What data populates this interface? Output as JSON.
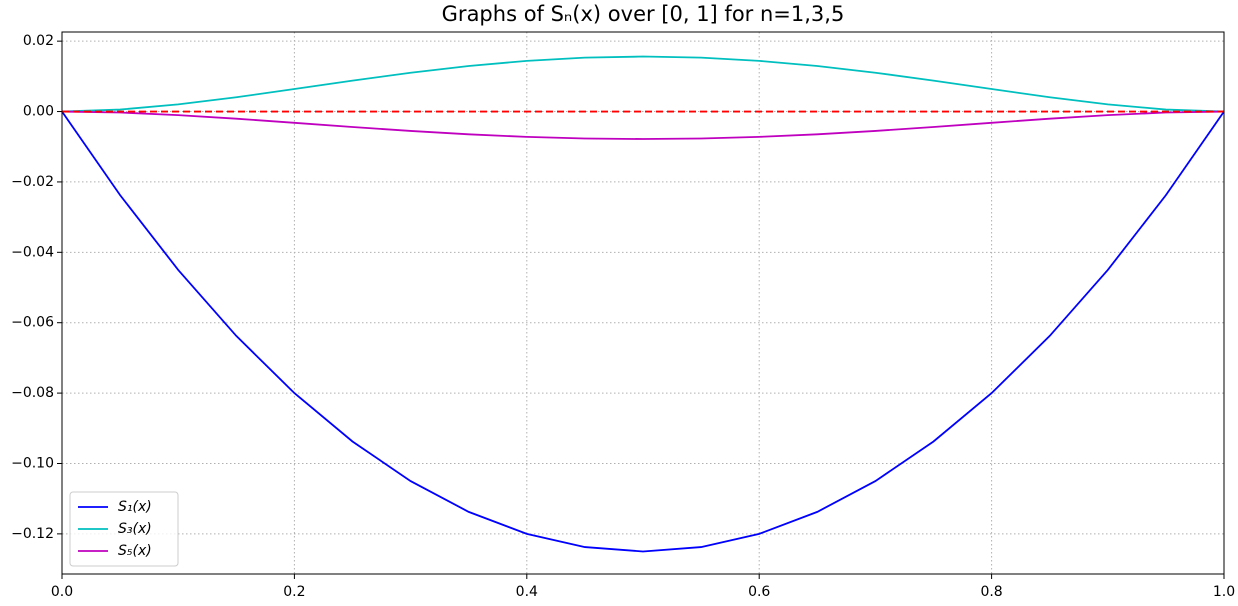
{
  "chart_data": {
    "type": "line",
    "title": "Graphs of Sₙ(x) over [0, 1] for n=1,3,5",
    "x": [
      0,
      0.05,
      0.1,
      0.15,
      0.2,
      0.25,
      0.3,
      0.35,
      0.4,
      0.45,
      0.5,
      0.55,
      0.6,
      0.65,
      0.7,
      0.75,
      0.8,
      0.85,
      0.9,
      0.95,
      1
    ],
    "series": [
      {
        "name": "S₁(x)",
        "color": "#0000ff",
        "values": [
          0,
          -0.02375,
          -0.045,
          -0.06375,
          -0.08,
          -0.09375,
          -0.105,
          -0.11375,
          -0.12,
          -0.12375,
          -0.125,
          -0.12375,
          -0.12,
          -0.11375,
          -0.105,
          -0.09375,
          -0.08,
          -0.06375,
          -0.045,
          -0.02375,
          0
        ]
      },
      {
        "name": "S₃(x)",
        "color": "#00bfbf",
        "values": [
          0,
          0.00056,
          0.00203,
          0.00406,
          0.0064,
          0.00879,
          0.01103,
          0.01294,
          0.0144,
          0.01531,
          0.01563,
          0.01531,
          0.0144,
          0.01294,
          0.01103,
          0.00879,
          0.0064,
          0.00406,
          0.00203,
          0.00056,
          0
        ]
      },
      {
        "name": "S₅(x)",
        "color": "#bf00bf",
        "values": [
          0,
          -0.00028,
          -0.00101,
          -0.00203,
          -0.0032,
          -0.0044,
          -0.00551,
          -0.00647,
          -0.0072,
          -0.00766,
          -0.00781,
          -0.00766,
          -0.0072,
          -0.00647,
          -0.00551,
          -0.0044,
          -0.0032,
          -0.00203,
          -0.00101,
          -0.00028,
          0
        ]
      }
    ],
    "hline": {
      "y": 0,
      "color": "#ff0000",
      "style": "dashed"
    },
    "xlim": [
      0,
      1
    ],
    "ylim": [
      -0.1314,
      0.0226
    ],
    "xticks": [
      {
        "value": 0,
        "label": "0.0"
      },
      {
        "value": 0.2,
        "label": "0.2"
      },
      {
        "value": 0.4,
        "label": "0.4"
      },
      {
        "value": 0.6,
        "label": "0.6"
      },
      {
        "value": 0.8,
        "label": "0.8"
      },
      {
        "value": 1,
        "label": "1.0"
      }
    ],
    "yticks": [
      {
        "value": -0.12,
        "label": "−0.12"
      },
      {
        "value": -0.1,
        "label": "−0.10"
      },
      {
        "value": -0.08,
        "label": "−0.08"
      },
      {
        "value": -0.06,
        "label": "−0.06"
      },
      {
        "value": -0.04,
        "label": "−0.04"
      },
      {
        "value": -0.02,
        "label": "−0.02"
      },
      {
        "value": 0,
        "label": "0.00"
      },
      {
        "value": 0.02,
        "label": "0.02"
      }
    ],
    "grid": true,
    "legend": "lower left"
  }
}
